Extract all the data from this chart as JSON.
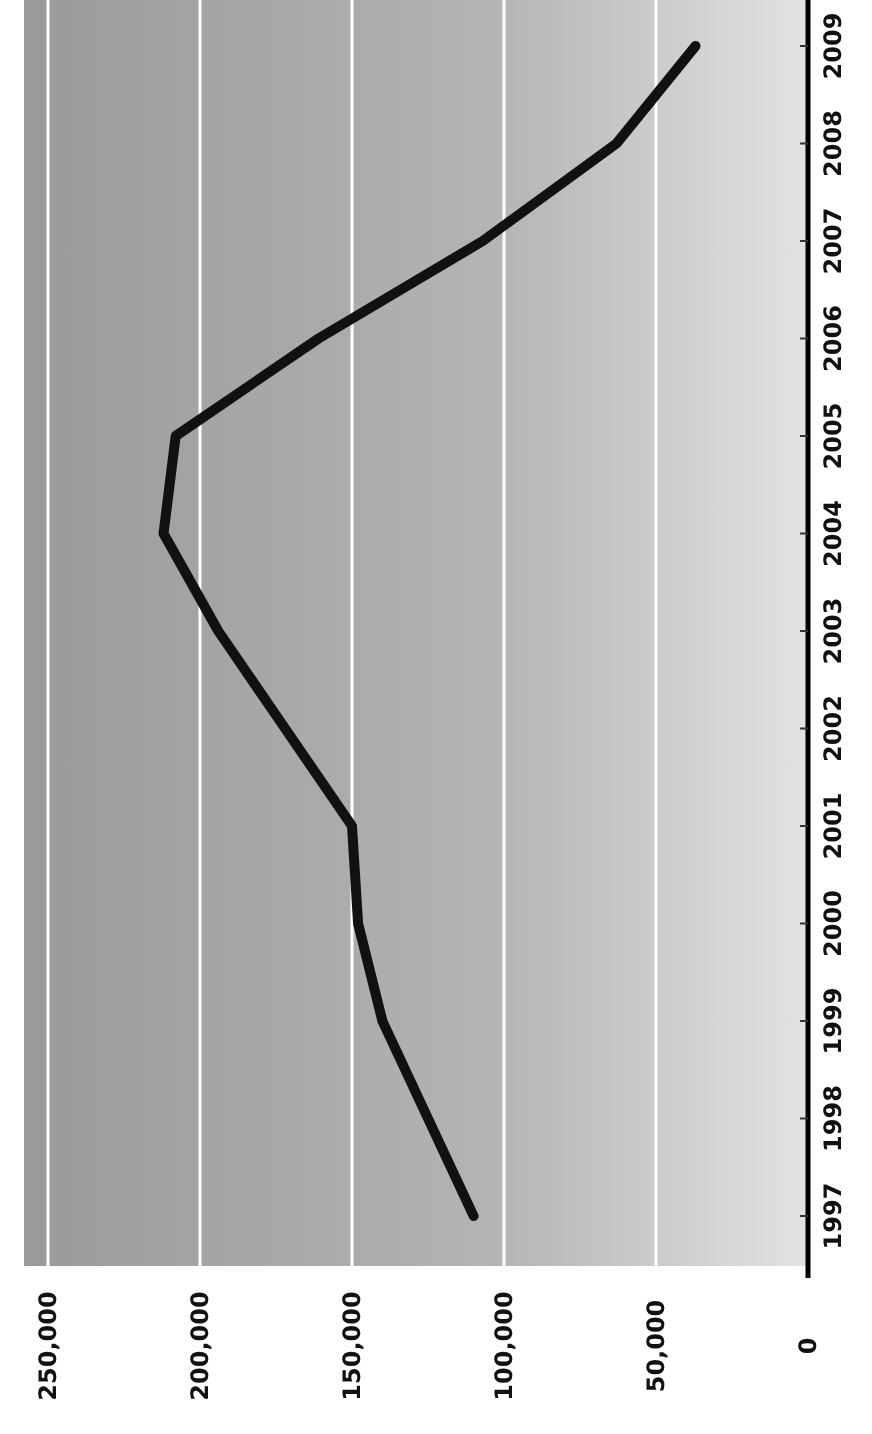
{
  "chart_data": {
    "type": "line",
    "orientation": "horizontal",
    "categories": [
      "2009",
      "2008",
      "2007",
      "2006",
      "2005",
      "2004",
      "2003",
      "2002",
      "2001",
      "2000",
      "1999",
      "1998",
      "1997"
    ],
    "series": [
      {
        "color": "#111111",
        "values": [
          37000,
          63000,
          107000,
          161000,
          208000,
          212000,
          194000,
          172000,
          150000,
          148000,
          140000,
          125000,
          110000
        ]
      }
    ],
    "xlim": [
      250000,
      0
    ],
    "xticks": [
      {
        "value": 250000,
        "label": "250,000"
      },
      {
        "value": 200000,
        "label": "200,000"
      },
      {
        "value": 150000,
        "label": "150,000"
      },
      {
        "value": 100000,
        "label": "100,000"
      },
      {
        "value": 50000,
        "label": "50,000"
      },
      {
        "value": 0,
        "label": "0"
      }
    ],
    "grid": "x",
    "marker": "none",
    "line_style": "solid"
  }
}
